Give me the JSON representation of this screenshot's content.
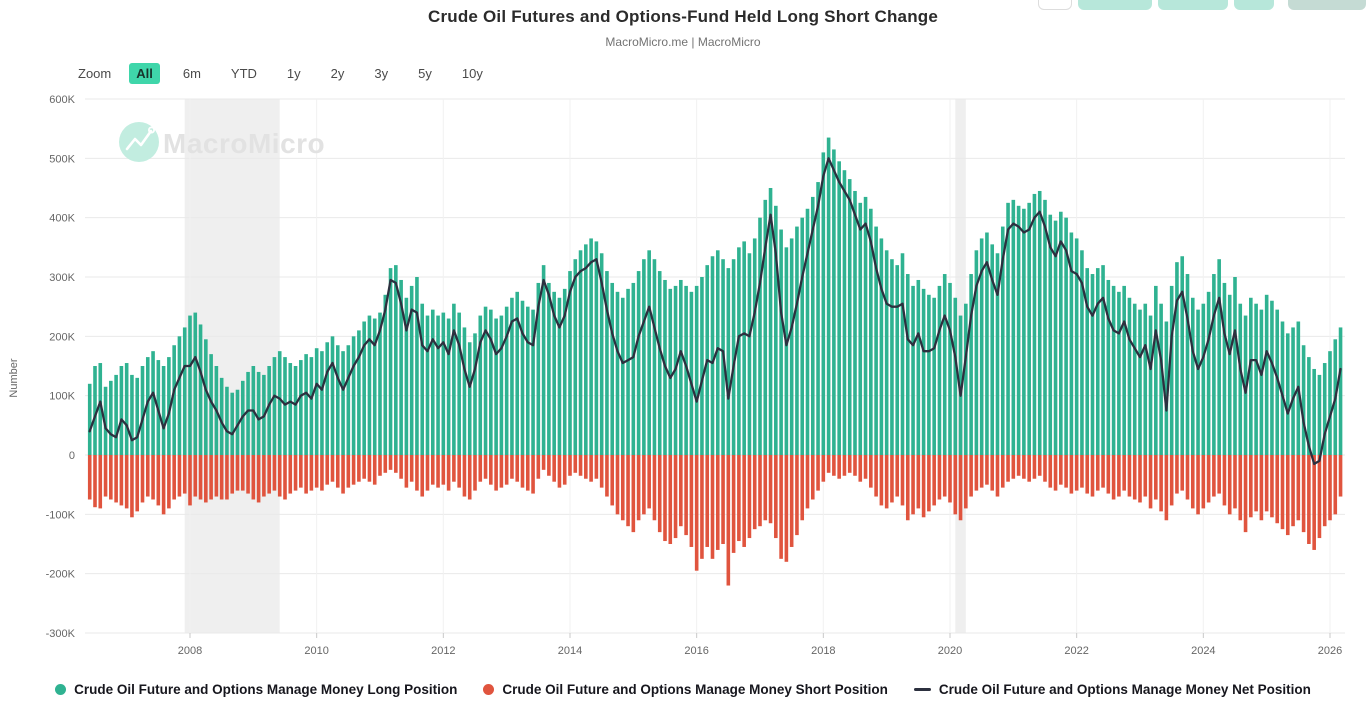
{
  "header": {
    "title": "Crude Oil Futures and Options-Fund Held Long Short Change",
    "subtitle": "MacroMicro.me | MacroMicro"
  },
  "toolbar": {
    "zoom_label": "Zoom",
    "ranges": [
      "All",
      "6m",
      "YTD",
      "1y",
      "2y",
      "3y",
      "5y",
      "10y"
    ],
    "selected_range": "All"
  },
  "watermark": {
    "text": "MacroMicro"
  },
  "colors": {
    "long_bar": "#2FB291",
    "short_bar": "#E0543E",
    "net_line": "#2C303F",
    "selected_range_bg": "#3FD6AA",
    "recession_band": "#EFEFEF",
    "gridline": "#E9E9E9",
    "vertical_gridline": "#F1F1F1",
    "axis_text": "#666666",
    "watermark_circle": "#C2EDE0",
    "watermark_text": "#E2E2E2"
  },
  "chart_data": {
    "type": "bar",
    "subtype": "monthly columns with weekly net line overlay",
    "title": "Crude Oil Futures and Options-Fund Held Long Short Change",
    "xlabel": "",
    "ylabel": "Number",
    "value_scale": "K (thousands)",
    "ylim_K": [
      -300,
      600
    ],
    "y_tick_labels": [
      "600K",
      "500K",
      "400K",
      "300K",
      "200K",
      "100K",
      "0",
      "-100K",
      "-200K",
      "-300K"
    ],
    "y_tick_values_K": [
      600,
      500,
      400,
      300,
      200,
      100,
      0,
      -100,
      -200,
      -300
    ],
    "x_tick_labels": [
      "2008",
      "2010",
      "2012",
      "2014",
      "2016",
      "2018",
      "2020",
      "2022",
      "2024",
      "2026"
    ],
    "x_monthly_start": "2006-06",
    "legend_position": "bottom",
    "grid": "on",
    "recession_bands": [
      [
        "2007-12",
        "2009-06"
      ],
      [
        "2020-02",
        "2020-04"
      ]
    ],
    "series": [
      {
        "name": "Crude Oil Future and Options Manage Money Long Position",
        "type": "bar",
        "values_K": [
          120,
          150,
          155,
          115,
          125,
          135,
          150,
          155,
          135,
          130,
          150,
          165,
          175,
          160,
          150,
          165,
          185,
          200,
          215,
          235,
          240,
          220,
          195,
          170,
          150,
          130,
          115,
          105,
          110,
          125,
          140,
          150,
          140,
          135,
          150,
          165,
          175,
          165,
          155,
          150,
          160,
          170,
          165,
          180,
          175,
          190,
          200,
          185,
          175,
          185,
          200,
          210,
          225,
          235,
          230,
          240,
          270,
          315,
          320,
          295,
          265,
          285,
          300,
          255,
          235,
          245,
          235,
          240,
          230,
          255,
          240,
          215,
          190,
          205,
          235,
          250,
          245,
          230,
          235,
          250,
          265,
          275,
          260,
          250,
          245,
          290,
          320,
          290,
          275,
          265,
          280,
          310,
          330,
          345,
          355,
          365,
          360,
          340,
          310,
          290,
          275,
          265,
          280,
          290,
          310,
          330,
          345,
          330,
          310,
          295,
          280,
          285,
          295,
          285,
          275,
          285,
          300,
          320,
          335,
          345,
          330,
          315,
          330,
          350,
          360,
          340,
          365,
          400,
          430,
          450,
          420,
          380,
          350,
          365,
          385,
          400,
          415,
          435,
          460,
          510,
          535,
          515,
          495,
          480,
          465,
          445,
          425,
          435,
          415,
          385,
          365,
          345,
          330,
          320,
          340,
          305,
          285,
          295,
          280,
          270,
          265,
          285,
          305,
          290,
          265,
          235,
          255,
          305,
          345,
          365,
          375,
          355,
          340,
          385,
          425,
          430,
          420,
          415,
          425,
          440,
          445,
          430,
          405,
          395,
          410,
          400,
          375,
          365,
          345,
          315,
          305,
          315,
          320,
          295,
          285,
          275,
          285,
          265,
          255,
          245,
          255,
          235,
          285,
          255,
          225,
          285,
          325,
          335,
          305,
          265,
          245,
          255,
          275,
          305,
          330,
          290,
          270,
          300,
          255,
          235,
          265,
          255,
          245,
          270,
          260,
          245,
          225,
          205,
          215,
          225,
          185,
          165,
          145,
          135,
          155,
          175,
          195,
          215
        ]
      },
      {
        "name": "Crude Oil Future and Options Manage Money Short Position",
        "type": "bar",
        "values_K": [
          -75,
          -88,
          -90,
          -70,
          -75,
          -80,
          -85,
          -90,
          -105,
          -95,
          -80,
          -70,
          -75,
          -85,
          -100,
          -90,
          -75,
          -70,
          -65,
          -85,
          -70,
          -75,
          -80,
          -75,
          -70,
          -75,
          -75,
          -65,
          -60,
          -60,
          -65,
          -75,
          -80,
          -70,
          -65,
          -60,
          -70,
          -75,
          -65,
          -60,
          -55,
          -65,
          -60,
          -55,
          -60,
          -50,
          -45,
          -55,
          -65,
          -55,
          -50,
          -45,
          -40,
          -45,
          -50,
          -35,
          -30,
          -25,
          -30,
          -40,
          -55,
          -45,
          -60,
          -70,
          -60,
          -50,
          -55,
          -50,
          -60,
          -45,
          -55,
          -70,
          -75,
          -60,
          -45,
          -40,
          -50,
          -60,
          -55,
          -50,
          -40,
          -45,
          -55,
          -60,
          -65,
          -40,
          -25,
          -35,
          -45,
          -55,
          -50,
          -35,
          -30,
          -35,
          -40,
          -45,
          -40,
          -55,
          -70,
          -85,
          -100,
          -110,
          -120,
          -130,
          -110,
          -100,
          -90,
          -110,
          -130,
          -145,
          -150,
          -140,
          -120,
          -135,
          -155,
          -195,
          -175,
          -155,
          -175,
          -160,
          -150,
          -220,
          -165,
          -145,
          -155,
          -140,
          -125,
          -120,
          -110,
          -115,
          -140,
          -175,
          -180,
          -155,
          -135,
          -110,
          -90,
          -75,
          -60,
          -45,
          -30,
          -35,
          -40,
          -35,
          -30,
          -35,
          -45,
          -40,
          -55,
          -70,
          -85,
          -90,
          -80,
          -70,
          -85,
          -110,
          -100,
          -90,
          -105,
          -95,
          -85,
          -75,
          -70,
          -80,
          -100,
          -110,
          -90,
          -70,
          -60,
          -55,
          -50,
          -60,
          -70,
          -55,
          -45,
          -40,
          -35,
          -40,
          -45,
          -40,
          -35,
          -45,
          -55,
          -60,
          -50,
          -55,
          -65,
          -60,
          -55,
          -65,
          -70,
          -60,
          -55,
          -65,
          -75,
          -70,
          -60,
          -70,
          -75,
          -80,
          -70,
          -90,
          -75,
          -95,
          -110,
          -85,
          -65,
          -60,
          -75,
          -90,
          -100,
          -90,
          -80,
          -70,
          -65,
          -85,
          -100,
          -90,
          -110,
          -130,
          -105,
          -95,
          -110,
          -95,
          -105,
          -115,
          -125,
          -135,
          -120,
          -110,
          -130,
          -150,
          -160,
          -140,
          -120,
          -110,
          -100,
          -70
        ]
      },
      {
        "name": "Crude Oil Future and Options Manage Money Net Position",
        "type": "line",
        "values_K": [
          40,
          65,
          90,
          45,
          35,
          30,
          60,
          50,
          25,
          30,
          60,
          90,
          105,
          75,
          45,
          70,
          110,
          130,
          150,
          150,
          165,
          140,
          110,
          90,
          75,
          55,
          40,
          35,
          50,
          65,
          75,
          75,
          60,
          65,
          85,
          100,
          95,
          85,
          90,
          85,
          100,
          105,
          95,
          120,
          110,
          140,
          155,
          130,
          110,
          130,
          150,
          165,
          185,
          195,
          185,
          210,
          245,
          295,
          290,
          255,
          210,
          245,
          240,
          185,
          175,
          195,
          180,
          190,
          170,
          210,
          185,
          145,
          115,
          145,
          190,
          210,
          195,
          170,
          180,
          200,
          225,
          230,
          205,
          190,
          185,
          250,
          295,
          270,
          235,
          215,
          235,
          275,
          300,
          310,
          315,
          325,
          330,
          290,
          245,
          205,
          175,
          155,
          160,
          165,
          200,
          225,
          250,
          215,
          180,
          150,
          130,
          145,
          175,
          150,
          120,
          90,
          125,
          160,
          155,
          180,
          175,
          95,
          150,
          200,
          205,
          200,
          240,
          290,
          350,
          405,
          340,
          240,
          185,
          215,
          255,
          300,
          340,
          380,
          420,
          470,
          500,
          480,
          460,
          445,
          430,
          405,
          380,
          390,
          360,
          315,
          280,
          255,
          250,
          250,
          255,
          195,
          185,
          205,
          175,
          175,
          180,
          210,
          235,
          210,
          165,
          100,
          165,
          235,
          285,
          310,
          325,
          295,
          270,
          330,
          380,
          390,
          385,
          375,
          380,
          400,
          410,
          385,
          350,
          335,
          360,
          345,
          310,
          305,
          290,
          250,
          235,
          255,
          265,
          230,
          210,
          205,
          225,
          195,
          180,
          165,
          185,
          145,
          210,
          160,
          75,
          200,
          260,
          275,
          230,
          175,
          145,
          165,
          195,
          235,
          265,
          205,
          170,
          210,
          145,
          105,
          160,
          160,
          135,
          175,
          155,
          130,
          100,
          70,
          95,
          115,
          55,
          15,
          -15,
          -10,
          35,
          65,
          95,
          145
        ]
      }
    ]
  },
  "legend": [
    {
      "label": "Crude Oil Future and Options Manage Money Long Position",
      "marker": "circle",
      "color": "#2FB291"
    },
    {
      "label": "Crude Oil Future and Options Manage Money Short Position",
      "marker": "circle",
      "color": "#E0543E"
    },
    {
      "label": "Crude Oil Future and Options Manage Money Net Position",
      "marker": "dash",
      "color": "#2C303F"
    }
  ]
}
